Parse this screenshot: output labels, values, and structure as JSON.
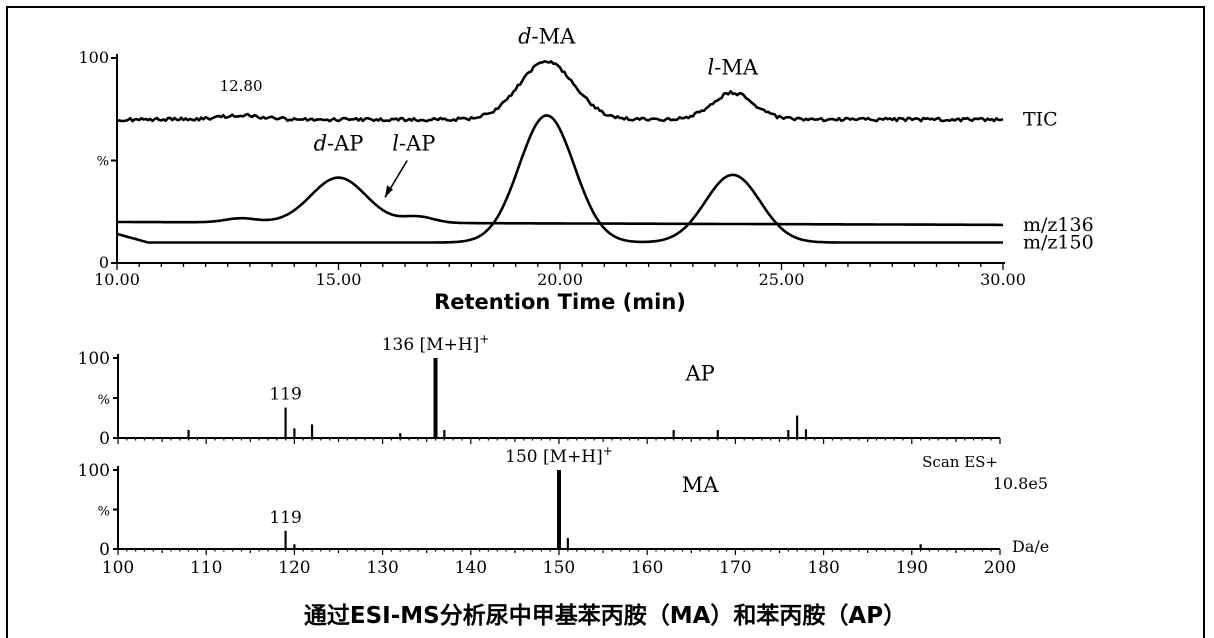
{
  "caption": "通过ESI-MS分析尿中甲基苯丙胺（MA）和苯丙胺（AP）",
  "chart_data": [
    {
      "type": "line",
      "title": "",
      "xlabel": "Retention Time (min)",
      "ylabel": "%",
      "xlim": [
        10.0,
        30.0
      ],
      "ylim": [
        0,
        100
      ],
      "x_ticks": [
        "10.00",
        "15.00",
        "20.00",
        "25.00",
        "30.00"
      ],
      "y_ticks": [
        "0",
        "%",
        "100"
      ],
      "series": [
        {
          "name": "TIC",
          "peaks": [
            {
              "rt": 12.8,
              "height": 72
            },
            {
              "rt": 19.7,
              "height": 98
            },
            {
              "rt": 23.9,
              "height": 83
            }
          ],
          "baseline": 70
        },
        {
          "name": "m/z136",
          "peaks": [
            {
              "rt": 12.8,
              "height": 22
            },
            {
              "rt": 15.0,
              "height": 42
            },
            {
              "rt": 16.8,
              "height": 23
            }
          ],
          "baseline": 20
        },
        {
          "name": "m/z150",
          "peaks": [
            {
              "rt": 19.7,
              "height": 72
            },
            {
              "rt": 23.9,
              "height": 43
            }
          ],
          "baseline": 10
        }
      ],
      "annotations": [
        {
          "text": "12.80",
          "x": 12.8
        },
        {
          "text": "d-MA",
          "prefix": "d",
          "suffix": "-MA",
          "x": 19.7
        },
        {
          "text": "l-MA",
          "prefix": "l",
          "suffix": "-MA",
          "x": 23.9
        },
        {
          "text": "d-AP",
          "prefix": "d",
          "suffix": "-AP",
          "x": 15.0
        },
        {
          "text": "l-AP",
          "prefix": "l",
          "suffix": "-AP",
          "x": 16.8
        }
      ]
    },
    {
      "type": "bar",
      "title": "AP",
      "xlabel": "",
      "ylabel": "%",
      "xlim": [
        100,
        200
      ],
      "ylim": [
        0,
        100
      ],
      "y_ticks": [
        "0",
        "%",
        "100"
      ],
      "peaks": [
        {
          "mz": 108,
          "rel": 10
        },
        {
          "mz": 119,
          "rel": 38
        },
        {
          "mz": 120,
          "rel": 12
        },
        {
          "mz": 122,
          "rel": 17
        },
        {
          "mz": 132,
          "rel": 6
        },
        {
          "mz": 136,
          "rel": 100
        },
        {
          "mz": 137,
          "rel": 10
        },
        {
          "mz": 163,
          "rel": 10
        },
        {
          "mz": 168,
          "rel": 10
        },
        {
          "mz": 176,
          "rel": 10
        },
        {
          "mz": 177,
          "rel": 28
        },
        {
          "mz": 178,
          "rel": 11
        }
      ],
      "labels": [
        {
          "mz": 119,
          "text": "119"
        },
        {
          "mz": 136,
          "text": "136 [M+H]",
          "sup": "+"
        }
      ]
    },
    {
      "type": "bar",
      "title": "MA",
      "xlabel": "Da/e",
      "ylabel": "%",
      "xlim": [
        100,
        200
      ],
      "ylim": [
        0,
        100
      ],
      "y_ticks": [
        "0",
        "%",
        "100"
      ],
      "x_ticks": [
        "100",
        "110",
        "120",
        "130",
        "140",
        "150",
        "160",
        "170",
        "180",
        "190",
        "200"
      ],
      "peaks": [
        {
          "mz": 119,
          "rel": 23
        },
        {
          "mz": 120,
          "rel": 6
        },
        {
          "mz": 150,
          "rel": 100
        },
        {
          "mz": 151,
          "rel": 14
        },
        {
          "mz": 191,
          "rel": 6
        }
      ],
      "labels": [
        {
          "mz": 119,
          "text": "119"
        },
        {
          "mz": 150,
          "text": "150 [M+H]",
          "sup": "+"
        }
      ],
      "scan_label": "Scan ES+",
      "intensity": "10.8e5"
    }
  ]
}
